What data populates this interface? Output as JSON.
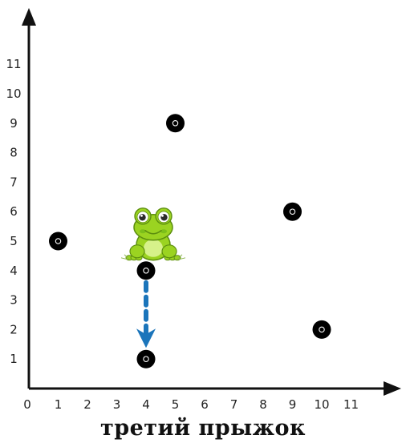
{
  "chart_data": {
    "type": "scatter",
    "x_ticks": [
      "0",
      "1",
      "2",
      "3",
      "4",
      "5",
      "6",
      "7",
      "8",
      "9",
      "10",
      "11"
    ],
    "y_ticks": [
      "1",
      "2",
      "3",
      "4",
      "5",
      "6",
      "7",
      "8",
      "9",
      "10",
      "11"
    ],
    "xlim": [
      0,
      12
    ],
    "ylim": [
      0,
      12
    ],
    "grid": false,
    "points": [
      {
        "x": 1,
        "y": 5
      },
      {
        "x": 4,
        "y": 4
      },
      {
        "x": 4,
        "y": 1
      },
      {
        "x": 5,
        "y": 9
      },
      {
        "x": 9,
        "y": 6
      },
      {
        "x": 10,
        "y": 2
      }
    ],
    "jump": {
      "from": {
        "x": 4,
        "y": 4
      },
      "to": {
        "x": 4,
        "y": 1
      }
    },
    "frog_at": {
      "x": 4,
      "y": 4
    }
  },
  "caption": "третий прыжок",
  "colors": {
    "axis": "#111111",
    "point": "#000000",
    "arrow": "#1b75bb",
    "frog_body": "#9bd321",
    "frog_dark": "#5d8f0f"
  },
  "icons": {
    "character": "frog-icon",
    "jump_arrow": "arrow-down-icon"
  }
}
